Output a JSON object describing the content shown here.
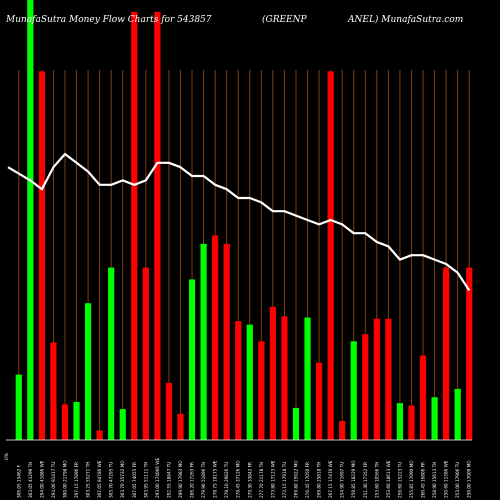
{
  "chart_data": {
    "type": "bar",
    "title_left": "MunafaSutra  Money Flow  Charts for 543857",
    "title_mid": "(GREENP",
    "title_right": "ANEL) MunafaSutra.com",
    "y_axis_label": "0%",
    "colors": {
      "up": "#00ff00",
      "down": "#ff0000",
      "line": "#ffffff",
      "grid": "#8b4513",
      "background": "#000000"
    },
    "categories": [
      "306.05 15462 F",
      "303.05 41299 TH",
      "294.00 41886 WE",
      "294.00 91417 TU",
      "300.00 21798 MO",
      "297.15 17896 FR",
      "303.25 55271 TH",
      "307.05 84786 WE",
      "305.70 47295 TU",
      "303.70 35732 MO",
      "307.05 74055 FR",
      "303.95 51111 TH",
      "293.00 174066 WE",
      "292.55 18847 TU",
      "299.90 17983 MO",
      "286.20 17263 FR",
      "279.90 51896 TH",
      "278.75 19175 WE",
      "278.10 29826 TU",
      "278.45 37126 MO",
      "279.30 33842 FR",
      "277.70 21178 TH",
      "273.80 17123 WE",
      "272.15 17918 TU",
      "269.80 15922 MO",
      "276.45 17050 FR",
      "269.80 25818 TH",
      "267.15 17470 WE",
      "254.90 71697 TU",
      "259.85 18229 MO",
      "251.40 17352 FR",
      "253.60 10566 TH",
      "253.60 18613 WE",
      "259.60 15223 TU",
      "255.85 17090 MO",
      "260.45 16806 FR",
      "258.90 15613 TH",
      "250.60 11586 WE",
      "253.00 17906 TU",
      "250.00 17009 MO"
    ],
    "values": [
      55,
      370,
      310,
      82,
      30,
      32,
      115,
      8,
      145,
      26,
      360,
      145,
      360,
      48,
      22,
      135,
      165,
      172,
      165,
      100,
      97,
      83,
      112,
      104,
      27,
      103,
      65,
      310,
      16,
      83,
      89,
      102,
      102,
      31,
      29,
      71,
      36,
      145,
      43,
      145
    ],
    "directions": [
      "up",
      "up",
      "down",
      "down",
      "down",
      "up",
      "up",
      "down",
      "up",
      "up",
      "down",
      "down",
      "down",
      "down",
      "down",
      "up",
      "up",
      "down",
      "down",
      "down",
      "up",
      "down",
      "down",
      "down",
      "up",
      "up",
      "down",
      "down",
      "down",
      "up",
      "down",
      "down",
      "down",
      "up",
      "down",
      "down",
      "up",
      "down",
      "up",
      "down"
    ],
    "flow_line": [
      62,
      59,
      57,
      62,
      65,
      63,
      61,
      58,
      58,
      59,
      58,
      59,
      63,
      63,
      62,
      60,
      60,
      58,
      57,
      55,
      55,
      54,
      52,
      52,
      51,
      50,
      49,
      50,
      49,
      47,
      47,
      45,
      44,
      41,
      42,
      42,
      41,
      40,
      38,
      34
    ],
    "flow_line_extents": [
      0,
      100
    ]
  }
}
